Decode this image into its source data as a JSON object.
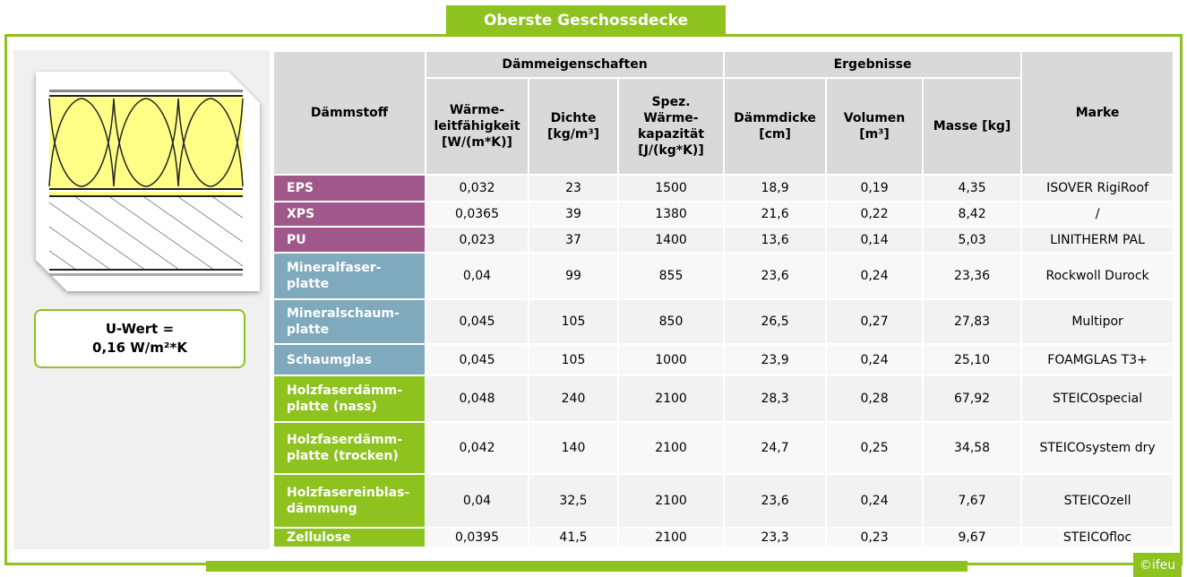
{
  "title": "Oberste Geschossdecke",
  "u_value": {
    "line1": "U-Wert =",
    "line2": "0,16 W/m²*K"
  },
  "copyright": "©ifeu",
  "table": {
    "header": {
      "first": "Dämmstoff",
      "groups": [
        "Dämmeigenschaften",
        "Ergebnisse"
      ],
      "last": "Marke",
      "columns": [
        "Wärme-\nleitfähigkeit\n[W/(m*K)]",
        "Dichte\n[kg/m³]",
        "Spez.\nWärme-\nkapazität\n[J/(kg*K)]",
        "Dämmdicke\n[cm]",
        "Volumen\n[m³]",
        "Masse [kg]"
      ]
    },
    "rows": [
      [
        "EPS",
        "0,032",
        "23",
        "1500",
        "18,9",
        "0,19",
        "4,35",
        "ISOVER RigiRoof"
      ],
      [
        "XPS",
        "0,0365",
        "39",
        "1380",
        "21,6",
        "0,22",
        "8,42",
        "/"
      ],
      [
        "PU",
        "0,023",
        "37",
        "1400",
        "13,6",
        "0,14",
        "5,03",
        "LINITHERM PAL"
      ],
      [
        "Mineralfaser-\nplatte",
        "0,04",
        "99",
        "855",
        "23,6",
        "0,24",
        "23,36",
        "Rockwoll Durock"
      ],
      [
        "Mineralschaum-\nplatte",
        "0,045",
        "105",
        "850",
        "26,5",
        "0,27",
        "27,83",
        "Multipor"
      ],
      [
        "Schaumglas",
        "0,045",
        "105",
        "1000",
        "23,9",
        "0,24",
        "25,10",
        "FOAMGLAS T3+"
      ],
      [
        "Holzfaserdämm-\nplatte (nass)",
        "0,048",
        "240",
        "2100",
        "28,3",
        "0,28",
        "67,92",
        "STEICOspecial"
      ],
      [
        "Holzfaserdämm-\nplatte (trocken)",
        "0,042",
        "140",
        "2100",
        "24,7",
        "0,25",
        "34,58",
        "STEICOsystem dry"
      ],
      [
        "Holzfasereinblas-\ndämmung",
        "0,04",
        "32,5",
        "2100",
        "23,6",
        "0,24",
        "7,67",
        "STEICOzell"
      ],
      [
        "Zellulose",
        "0,0395",
        "41,5",
        "2100",
        "23,3",
        "0,23",
        "9,67",
        "STEICOfloc"
      ]
    ]
  }
}
